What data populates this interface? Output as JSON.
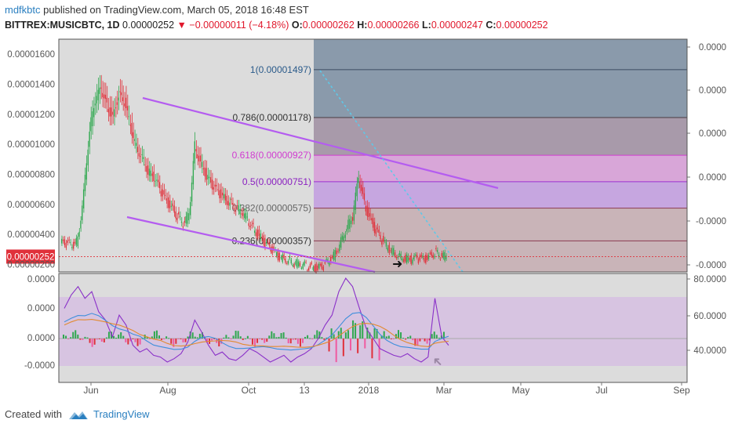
{
  "header": {
    "user": "mdfkbtc",
    "published": "published on TradingView.com, March 05, 2018 16:48 EST",
    "symbol": "BITTREX:MUSICBTC, 1D",
    "last": "0.00000252",
    "change": "−0.00000011 (−4.18%)",
    "o_label": "O:",
    "o": "0.00000262",
    "h_label": "H:",
    "h": "0.00000266",
    "l_label": "L:",
    "l": "0.00000247",
    "c_label": "C:",
    "c": "0.00000252"
  },
  "footer": {
    "created_with": "Created with",
    "brand": "TradingView"
  },
  "colors": {
    "up": "#2fa84f",
    "down": "#e0303a",
    "fib_bg": "#8a9aab",
    "channel": "#b45cf0",
    "trend_dotted": "#5ec8e8",
    "rsi_purple": "#8a30c8",
    "ma_blue": "#3f8fdc",
    "ma_orange": "#e28a30"
  },
  "chart_data": [
    {
      "type": "candlestick",
      "price_axis_labels": [
        "0.00001600",
        "0.00001400",
        "0.00001200",
        "0.00001000",
        "0.00000800",
        "0.00000600",
        "0.00000400",
        "0.00000200"
      ],
      "right_axis_labels": [
        "0.0000",
        "0.0000",
        "0.0000",
        "0.0000",
        "-0.0000",
        "-0.0000"
      ],
      "time_labels": [
        "Jun",
        "Aug",
        "Oct",
        "13",
        "2018",
        "Mar",
        "May",
        "Jul",
        "Sep"
      ],
      "last_price_label": "0.00000252",
      "ylim": [
        1.5e-06,
        1.7e-05
      ],
      "fib_levels": [
        {
          "label": "1(0.00001497)",
          "value": 1.497e-05
        },
        {
          "label": "0.786(0.00001178)",
          "value": 1.178e-05
        },
        {
          "label": "0.618(0.00000927)",
          "value": 9.27e-06
        },
        {
          "label": "0.5(0.00000751)",
          "value": 7.51e-06
        },
        {
          "label": "0.382(0.00000575)",
          "value": 5.75e-06
        },
        {
          "label": "0.236(0.00000357)",
          "value": 3.57e-06
        }
      ],
      "close_series": [
        3.4e-06,
        3.2e-06,
        3.6e-06,
        6.8e-06,
        1.1e-05,
        1.3e-05,
        1.37e-05,
        1.25e-05,
        1.18e-05,
        1.33e-05,
        1.28e-05,
        1.12e-05,
        9.8e-06,
        9.2e-06,
        8.2e-06,
        7.8e-06,
        7e-06,
        6.3e-06,
        5.8e-06,
        5.2e-06,
        4.7e-06,
        5.3e-06,
        9.9e-06,
        8.8e-06,
        7.9e-06,
        7.2e-06,
        6.8e-06,
        6.4e-06,
        6.1e-06,
        5.8e-06,
        5.5e-06,
        5e-06,
        4.4e-06,
        3.9e-06,
        3.4e-06,
        3e-06,
        2.6e-06,
        2.4e-06,
        2.3e-06,
        2.1e-06,
        2e-06,
        1.9e-06,
        1.8e-06,
        1.7e-06,
        1.9e-06,
        2.2e-06,
        2.7e-06,
        3.6e-06,
        4.5e-06,
        5.2e-06,
        7.8e-06,
        6e-06,
        5e-06,
        4.2e-06,
        3.6e-06,
        3.1e-06,
        2.8e-06,
        2.6e-06,
        2.4e-06,
        2.3e-06,
        2.4e-06,
        2.3e-06,
        2.5e-06,
        2.8e-06,
        2.6e-06,
        2.5e-06
      ]
    },
    {
      "type": "oscillator",
      "left_axis_labels": [
        "0.0000",
        "0.0000",
        "0.0000",
        "-0.0000"
      ],
      "right_axis_labels": [
        "80.0000",
        "60.0000",
        "40.0000"
      ],
      "rsi_series": [
        62,
        70,
        75,
        68,
        72,
        60,
        55,
        45,
        58,
        52,
        40,
        36,
        38,
        34,
        33,
        30,
        32,
        35,
        42,
        55,
        48,
        40,
        34,
        36,
        32,
        31,
        34,
        38,
        36,
        33,
        30,
        32,
        34,
        30,
        33,
        35,
        38,
        44,
        52,
        58,
        72,
        80,
        75,
        62,
        50,
        44,
        38,
        36,
        34,
        33,
        35,
        32,
        30,
        33,
        68,
        45,
        40
      ]
    }
  ]
}
